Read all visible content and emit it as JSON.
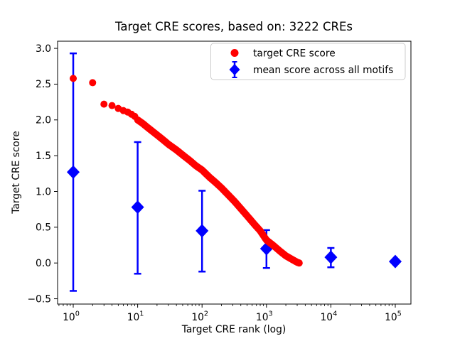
{
  "title": "Target CRE scores, based on: 3222 CREs",
  "axes": {
    "xlabel": "Target CRE rank (log)",
    "ylabel": "Target CRE score"
  },
  "legend": {
    "entries": [
      {
        "label": "target CRE score"
      },
      {
        "label": "mean score across all motifs"
      }
    ]
  },
  "chart_data": {
    "type": "scatter",
    "title": "Target CRE scores, based on: 3222 CREs",
    "xlabel": "Target CRE rank (log)",
    "ylabel": "Target CRE score",
    "x_scale": "log",
    "xlim_log10": [
      -0.243,
      5.243
    ],
    "ylim": [
      -0.574,
      3.1
    ],
    "grid": false,
    "legend_position": "upper right inside",
    "x_ticks": [
      {
        "value": 1,
        "base": "10",
        "sup": "0"
      },
      {
        "value": 10,
        "base": "10",
        "sup": "1"
      },
      {
        "value": 100,
        "base": "10",
        "sup": "2"
      },
      {
        "value": 1000,
        "base": "10",
        "sup": "3"
      },
      {
        "value": 10000,
        "base": "10",
        "sup": "4"
      },
      {
        "value": 100000,
        "base": "10",
        "sup": "5"
      }
    ],
    "y_ticks": [
      {
        "value": 3.0,
        "label": "3.0"
      },
      {
        "value": 2.5,
        "label": "2.5"
      },
      {
        "value": 2.0,
        "label": "2.0"
      },
      {
        "value": 1.5,
        "label": "1.5"
      },
      {
        "value": 1.0,
        "label": "1.0"
      },
      {
        "value": 0.5,
        "label": "0.5"
      },
      {
        "value": 0.0,
        "label": "0.0"
      },
      {
        "value": -0.5,
        "label": "−0.5"
      }
    ],
    "series": [
      {
        "name": "target CRE score",
        "marker": "circle",
        "color": "#ff0000",
        "type": "ranked-curve",
        "n_points": 3222,
        "control_points": [
          [
            1,
            2.58
          ],
          [
            2,
            2.52
          ],
          [
            3,
            2.22
          ],
          [
            4,
            2.2
          ],
          [
            5,
            2.16
          ],
          [
            6,
            2.13
          ],
          [
            7,
            2.11
          ],
          [
            8,
            2.08
          ],
          [
            9,
            2.05
          ],
          [
            10,
            2.0
          ],
          [
            12,
            1.95
          ],
          [
            14,
            1.9
          ],
          [
            17,
            1.84
          ],
          [
            20,
            1.79
          ],
          [
            25,
            1.72
          ],
          [
            30,
            1.66
          ],
          [
            40,
            1.58
          ],
          [
            50,
            1.51
          ],
          [
            65,
            1.43
          ],
          [
            80,
            1.36
          ],
          [
            100,
            1.3
          ],
          [
            130,
            1.2
          ],
          [
            160,
            1.13
          ],
          [
            200,
            1.05
          ],
          [
            250,
            0.96
          ],
          [
            320,
            0.86
          ],
          [
            400,
            0.76
          ],
          [
            500,
            0.66
          ],
          [
            650,
            0.54
          ],
          [
            800,
            0.45
          ],
          [
            1000,
            0.32
          ],
          [
            1300,
            0.24
          ],
          [
            1600,
            0.17
          ],
          [
            2000,
            0.1
          ],
          [
            2500,
            0.05
          ],
          [
            3000,
            0.01
          ],
          [
            3222,
            0.0
          ]
        ]
      },
      {
        "name": "mean score across all motifs",
        "marker": "diamond",
        "color": "#0000ff",
        "type": "errorbar",
        "points": [
          {
            "x": 1,
            "mean": 1.27,
            "lo": -0.39,
            "hi": 2.93
          },
          {
            "x": 10,
            "mean": 0.78,
            "lo": -0.15,
            "hi": 1.69
          },
          {
            "x": 100,
            "mean": 0.45,
            "lo": -0.12,
            "hi": 1.01
          },
          {
            "x": 1000,
            "mean": 0.2,
            "lo": -0.07,
            "hi": 0.46
          },
          {
            "x": 10000,
            "mean": 0.08,
            "lo": -0.06,
            "hi": 0.21
          },
          {
            "x": 100000,
            "mean": 0.02,
            "lo": 0.0,
            "hi": 0.04
          }
        ]
      }
    ]
  }
}
